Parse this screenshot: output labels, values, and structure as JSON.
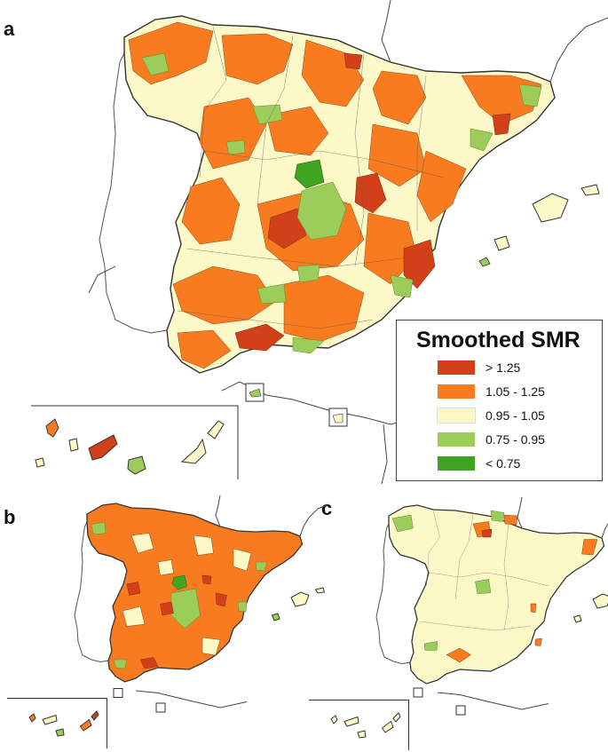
{
  "panels": {
    "a": "a",
    "b": "b",
    "c": "c"
  },
  "legend": {
    "title": "Smoothed SMR",
    "items": [
      {
        "label": "> 1.25",
        "color": "#d2401a"
      },
      {
        "label": "1.05 - 1.25",
        "color": "#f97b20"
      },
      {
        "label": "0.95 - 1.05",
        "color": "#fdf8c8"
      },
      {
        "label": "0.75 - 0.95",
        "color": "#9ccd5a"
      },
      {
        "label": "< 0.75",
        "color": "#3fa51f"
      }
    ]
  },
  "colors": {
    "very_high": "#d2401a",
    "high": "#f97b20",
    "neutral": "#fdf8c8",
    "low": "#9ccd5a",
    "very_low": "#3fa51f",
    "coast": "#333333"
  },
  "icons": [
    "spain-map-a",
    "spain-map-b",
    "spain-map-c",
    "canary-islands-inset",
    "ceuta-inset",
    "melilla-inset"
  ]
}
